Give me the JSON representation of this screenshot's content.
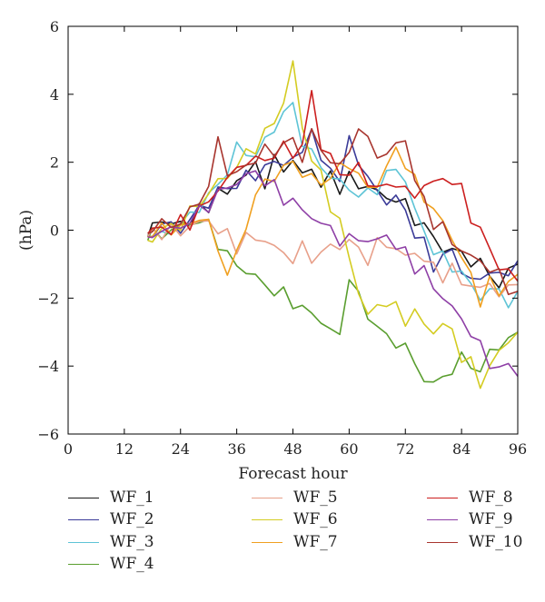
{
  "chart_data": {
    "type": "line",
    "title": "",
    "xlabel": "Forecast hour",
    "ylabel": "(hPa)",
    "xlim": [
      0,
      96
    ],
    "ylim": [
      -6,
      6
    ],
    "xticks": [
      0,
      12,
      24,
      36,
      48,
      60,
      72,
      84,
      96
    ],
    "yticks": [
      -6,
      -4,
      -2,
      0,
      2,
      4,
      6
    ],
    "xtick_labels": [
      "0",
      "12",
      "24",
      "36",
      "48",
      "60",
      "72",
      "84",
      "96"
    ],
    "ytick_labels": [
      "−6",
      "−4",
      "−2",
      "0",
      "2",
      "4",
      "6"
    ],
    "grid": false,
    "legend_position": "bottom",
    "series": [
      {
        "name": "WF_1",
        "color": "#1a1a1a",
        "x": [
          17,
          18,
          20,
          22,
          24,
          26,
          28,
          30,
          32,
          34,
          36,
          38,
          40,
          42,
          44,
          46,
          48,
          50,
          52,
          54,
          56,
          58,
          60,
          62,
          64,
          66,
          68,
          70,
          72,
          74,
          76,
          78,
          80,
          82,
          84,
          86,
          88,
          90,
          92,
          94,
          96
        ],
        "y": [
          -0.2,
          0.2,
          0.3,
          0.2,
          0.1,
          0.4,
          0.5,
          0.7,
          1.2,
          1.0,
          1.5,
          1.7,
          1.8,
          1.5,
          2.0,
          1.8,
          2.1,
          1.6,
          1.8,
          1.4,
          1.5,
          1.3,
          1.6,
          1.2,
          1.4,
          1.1,
          0.9,
          1.0,
          0.7,
          0.3,
          0.2,
          -0.3,
          -0.5,
          -0.6,
          -0.7,
          -0.9,
          -1.0,
          -1.3,
          -1.6,
          -1.3,
          -1.0
        ]
      },
      {
        "name": "WF_2",
        "color": "#3b3b98",
        "x": [
          17,
          18,
          20,
          22,
          24,
          26,
          28,
          30,
          32,
          34,
          36,
          38,
          40,
          42,
          44,
          46,
          48,
          50,
          52,
          54,
          56,
          58,
          60,
          62,
          64,
          66,
          68,
          70,
          72,
          74,
          76,
          78,
          80,
          82,
          84,
          86,
          88,
          90,
          92,
          94,
          96
        ],
        "y": [
          -0.2,
          0.0,
          0.1,
          0.2,
          0.0,
          0.3,
          0.6,
          0.9,
          1.0,
          1.4,
          1.2,
          1.7,
          1.5,
          2.0,
          1.8,
          2.2,
          1.9,
          2.4,
          3.0,
          2.0,
          1.8,
          1.6,
          2.5,
          2.2,
          1.4,
          1.2,
          0.8,
          1.0,
          0.5,
          0.0,
          -0.5,
          -1.0,
          -0.8,
          -0.6,
          -1.2,
          -1.4,
          -1.6,
          -1.0,
          -1.5,
          -1.2,
          -0.9
        ]
      },
      {
        "name": "WF_3",
        "color": "#5ec4d6",
        "x": [
          17,
          18,
          20,
          22,
          24,
          26,
          28,
          30,
          32,
          34,
          36,
          38,
          40,
          42,
          44,
          46,
          48,
          50,
          52,
          54,
          56,
          58,
          60,
          62,
          64,
          66,
          68,
          70,
          72,
          74,
          76,
          78,
          80,
          82,
          84,
          86,
          88,
          90,
          92,
          94,
          96
        ],
        "y": [
          -0.2,
          -0.1,
          -0.2,
          0.0,
          0.2,
          0.4,
          0.7,
          1.0,
          1.3,
          1.8,
          2.4,
          2.3,
          2.2,
          2.6,
          3.0,
          3.5,
          3.6,
          2.7,
          2.2,
          1.9,
          1.6,
          1.4,
          1.2,
          1.1,
          1.0,
          1.3,
          1.6,
          1.8,
          1.5,
          0.6,
          -0.1,
          -0.5,
          -0.9,
          -1.0,
          -1.3,
          -1.6,
          -2.0,
          -1.7,
          -1.9,
          -2.0,
          -1.8
        ]
      },
      {
        "name": "WF_4",
        "color": "#5a9e2f",
        "x": [
          17,
          18,
          20,
          22,
          24,
          26,
          28,
          30,
          32,
          34,
          36,
          38,
          40,
          42,
          44,
          46,
          48,
          50,
          52,
          54,
          56,
          58,
          60,
          62,
          64,
          66,
          68,
          70,
          72,
          74,
          76,
          78,
          80,
          82,
          84,
          86,
          88,
          90,
          92,
          94,
          96
        ],
        "y": [
          -0.3,
          -0.2,
          -0.1,
          0.0,
          0.1,
          0.2,
          0.3,
          0.1,
          -0.3,
          -0.8,
          -1.0,
          -1.2,
          -1.4,
          -1.6,
          -1.8,
          -1.9,
          -2.1,
          -2.3,
          -2.5,
          -2.6,
          -3.0,
          -3.1,
          -1.3,
          -2.0,
          -2.5,
          -2.8,
          -3.2,
          -3.3,
          -3.4,
          -4.0,
          -4.3,
          -4.6,
          -4.3,
          -4.1,
          -3.8,
          -3.9,
          -4.2,
          -3.6,
          -3.4,
          -3.2,
          -3.0
        ]
      },
      {
        "name": "WF_5",
        "color": "#e8a08a",
        "x": [
          17,
          18,
          20,
          22,
          24,
          26,
          28,
          30,
          32,
          34,
          36,
          38,
          40,
          42,
          44,
          46,
          48,
          50,
          52,
          54,
          56,
          58,
          60,
          62,
          64,
          66,
          68,
          70,
          72,
          74,
          76,
          78,
          80,
          82,
          84,
          86,
          88,
          90,
          92,
          94,
          96
        ],
        "y": [
          -0.2,
          -0.1,
          0.0,
          -0.1,
          0.0,
          0.1,
          0.2,
          0.3,
          0.0,
          -0.2,
          -0.4,
          -0.3,
          -0.2,
          -0.3,
          -0.5,
          -0.7,
          -0.8,
          -0.6,
          -0.7,
          -0.8,
          -0.4,
          -0.5,
          -0.3,
          -0.6,
          -0.8,
          -0.5,
          -0.3,
          -0.6,
          -0.8,
          -0.6,
          -0.9,
          -1.1,
          -1.3,
          -1.2,
          -1.5,
          -1.6,
          -1.8,
          -1.5,
          -1.9,
          -1.8,
          -1.6
        ]
      },
      {
        "name": "WF_6",
        "color": "#d4cc22",
        "x": [
          17,
          18,
          20,
          22,
          24,
          26,
          28,
          30,
          32,
          34,
          36,
          38,
          40,
          42,
          44,
          46,
          48,
          50,
          52,
          54,
          56,
          58,
          60,
          62,
          64,
          66,
          68,
          70,
          72,
          74,
          76,
          78,
          80,
          82,
          84,
          86,
          88,
          90,
          92,
          94,
          96
        ],
        "y": [
          -0.3,
          -0.2,
          0.0,
          0.1,
          0.2,
          0.5,
          0.8,
          1.1,
          1.4,
          1.6,
          1.9,
          2.2,
          2.5,
          2.8,
          3.2,
          3.8,
          4.9,
          3.0,
          2.2,
          1.5,
          0.8,
          0.2,
          -0.8,
          -1.8,
          -2.5,
          -2.3,
          -2.0,
          -2.4,
          -2.6,
          -2.4,
          -2.8,
          -3.0,
          -2.7,
          -3.1,
          -3.6,
          -4.0,
          -4.5,
          -4.0,
          -3.6,
          -3.3,
          -3.0
        ]
      },
      {
        "name": "WF_7",
        "color": "#f0a020",
        "x": [
          17,
          18,
          20,
          22,
          24,
          26,
          28,
          30,
          32,
          34,
          36,
          38,
          40,
          42,
          44,
          46,
          48,
          50,
          52,
          54,
          56,
          58,
          60,
          62,
          64,
          66,
          68,
          70,
          72,
          74,
          76,
          78,
          80,
          82,
          84,
          86,
          88,
          90,
          92,
          94,
          96
        ],
        "y": [
          -0.2,
          -0.1,
          0.0,
          0.1,
          0.0,
          0.2,
          0.4,
          0.2,
          -0.6,
          -1.2,
          -0.8,
          0.2,
          1.0,
          1.4,
          1.6,
          1.8,
          2.0,
          1.7,
          1.5,
          1.4,
          1.6,
          1.8,
          2.0,
          1.6,
          1.2,
          1.4,
          1.8,
          2.4,
          2.0,
          1.4,
          1.0,
          0.6,
          0.2,
          -0.2,
          -0.8,
          -1.4,
          -2.0,
          -1.6,
          -1.8,
          -1.5,
          -1.3
        ]
      },
      {
        "name": "WF_8",
        "color": "#cc1f1f",
        "x": [
          17,
          18,
          20,
          22,
          24,
          26,
          28,
          30,
          32,
          34,
          36,
          38,
          40,
          42,
          44,
          46,
          48,
          50,
          52,
          54,
          56,
          58,
          60,
          62,
          64,
          66,
          68,
          70,
          72,
          74,
          76,
          78,
          80,
          82,
          84,
          86,
          88,
          90,
          92,
          94,
          96
        ],
        "y": [
          -0.1,
          0.0,
          0.1,
          0.0,
          0.2,
          0.3,
          0.5,
          0.9,
          1.2,
          1.5,
          1.8,
          2.1,
          1.9,
          2.3,
          2.0,
          2.6,
          2.2,
          2.5,
          4.0,
          2.6,
          2.0,
          1.8,
          1.6,
          1.9,
          1.4,
          1.3,
          1.2,
          1.5,
          1.1,
          1.0,
          1.4,
          1.3,
          1.6,
          1.4,
          1.2,
          0.4,
          0.0,
          -0.6,
          -1.0,
          -1.3,
          -1.5
        ]
      },
      {
        "name": "WF_9",
        "color": "#8e3fa6",
        "x": [
          17,
          18,
          20,
          22,
          24,
          26,
          28,
          30,
          32,
          34,
          36,
          38,
          40,
          42,
          44,
          46,
          48,
          50,
          52,
          54,
          56,
          58,
          60,
          62,
          64,
          66,
          68,
          70,
          72,
          74,
          76,
          78,
          80,
          82,
          84,
          86,
          88,
          90,
          92,
          94,
          96
        ],
        "y": [
          -0.2,
          -0.1,
          0.0,
          0.0,
          0.1,
          0.3,
          0.5,
          0.8,
          1.0,
          1.3,
          1.4,
          1.6,
          1.7,
          1.5,
          1.2,
          1.0,
          0.8,
          0.6,
          0.4,
          0.2,
          0.0,
          -0.2,
          -0.4,
          -0.1,
          -0.4,
          -0.3,
          -0.1,
          -0.5,
          -0.7,
          -1.0,
          -1.3,
          -1.6,
          -2.0,
          -2.3,
          -2.6,
          -3.0,
          -3.5,
          -3.8,
          -4.2,
          -3.9,
          -4.3
        ]
      },
      {
        "name": "WF_10",
        "color": "#a8352e",
        "x": [
          17,
          18,
          20,
          22,
          24,
          26,
          28,
          30,
          32,
          34,
          36,
          38,
          40,
          42,
          44,
          46,
          48,
          50,
          52,
          54,
          56,
          58,
          60,
          62,
          64,
          66,
          68,
          70,
          72,
          74,
          76,
          78,
          80,
          82,
          84,
          86,
          88,
          90,
          92,
          94,
          96
        ],
        "y": [
          -0.1,
          0.1,
          0.2,
          0.1,
          0.3,
          0.5,
          0.9,
          1.3,
          2.6,
          1.8,
          1.6,
          1.9,
          2.1,
          2.4,
          2.2,
          2.7,
          2.5,
          2.2,
          2.9,
          2.3,
          2.1,
          1.9,
          2.2,
          3.2,
          2.5,
          2.3,
          2.2,
          2.5,
          2.7,
          1.5,
          0.8,
          0.3,
          0.0,
          -0.3,
          -0.6,
          -0.8,
          -0.9,
          -1.1,
          -1.4,
          -1.6,
          -1.8
        ]
      }
    ]
  }
}
